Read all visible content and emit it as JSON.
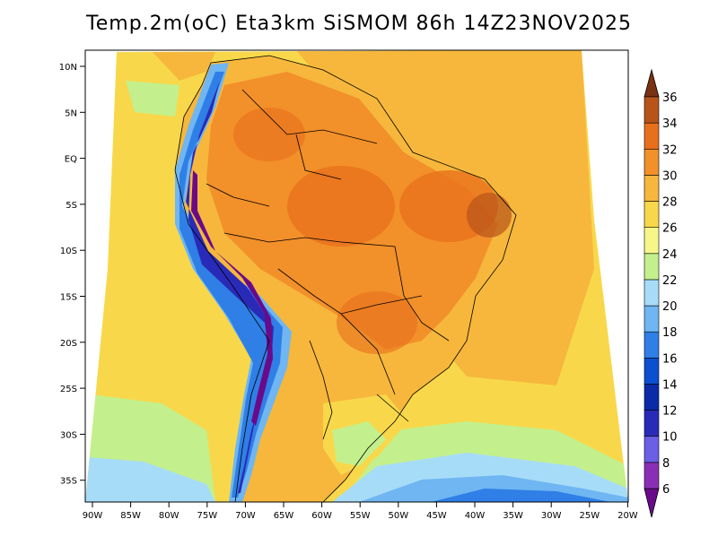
{
  "title": "Temp.2m(oC) Eta3km SiSMOM 86h 14Z23NOV2025",
  "lon_labels": [
    "90W",
    "85W",
    "80W",
    "75W",
    "70W",
    "65W",
    "60W",
    "55W",
    "50W",
    "45W",
    "40W",
    "35W",
    "30W",
    "25W",
    "20W"
  ],
  "lat_labels": [
    "10N",
    "5N",
    "EQ",
    "5S",
    "10S",
    "15S",
    "20S",
    "25S",
    "30S",
    "35S"
  ],
  "colorbar": {
    "labels": [
      "6",
      "8",
      "10",
      "12",
      "14",
      "16",
      "18",
      "20",
      "22",
      "24",
      "26",
      "28",
      "30",
      "32",
      "34",
      "36"
    ],
    "colors": [
      "#6a0a8a",
      "#8a2fb5",
      "#6b5fe6",
      "#2a2ab8",
      "#0a2aa8",
      "#0c4fd0",
      "#2f7fe6",
      "#6fb6f2",
      "#a7dcf8",
      "#c3f08c",
      "#f6f788",
      "#f8d84a",
      "#f6b73c",
      "#f2902a",
      "#e8701c",
      "#b8541a",
      "#7a3212"
    ]
  }
}
